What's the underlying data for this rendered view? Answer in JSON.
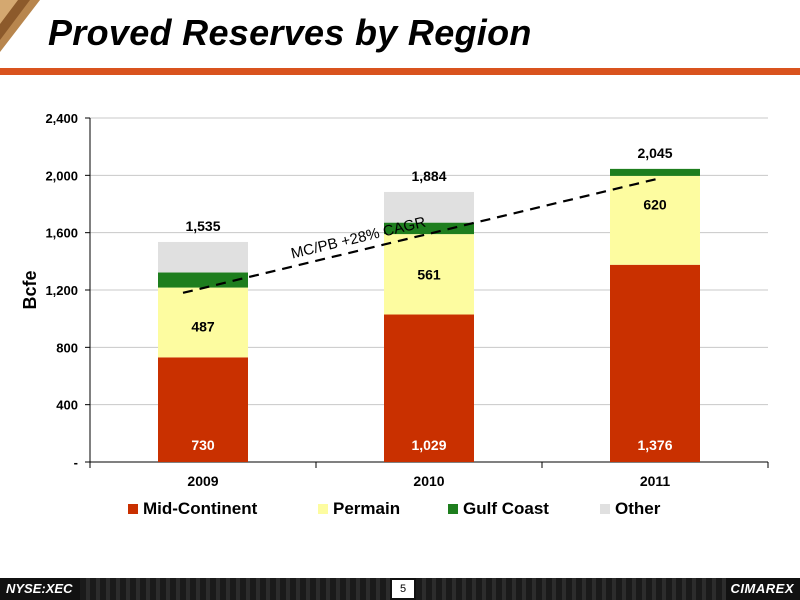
{
  "title": "Proved Reserves by Region",
  "footer": {
    "ticker": "NYSE:XEC",
    "page": "5",
    "brand": "CIMAREX"
  },
  "colors": {
    "Mid-Continent": "#c93000",
    "Permain": "#fdfca0",
    "Gulf Coast": "#1e7e1e",
    "Other": "#e0e0e0",
    "accent": "#d9531e"
  },
  "chart_data": {
    "type": "bar",
    "stacked": true,
    "categories": [
      "2009",
      "2010",
      "2011"
    ],
    "series": [
      {
        "name": "Mid-Continent",
        "values": [
          730,
          1029,
          1376
        ]
      },
      {
        "name": "Permain",
        "values": [
          487,
          561,
          620
        ]
      },
      {
        "name": "Gulf Coast",
        "values": [
          105,
          80,
          49
        ]
      },
      {
        "name": "Other",
        "values": [
          213,
          214,
          0
        ]
      }
    ],
    "segment_labels": {
      "Mid-Continent": [
        "730",
        "1,029",
        "1,376"
      ],
      "Permain": [
        "487",
        "561",
        "620"
      ]
    },
    "totals": [
      1535,
      1884,
      2045
    ],
    "total_labels": [
      "1,535",
      "1,884",
      "2,045"
    ],
    "ylabel": "Bcfe",
    "xlabel": "",
    "ylim": [
      0,
      2400
    ],
    "yticks": [
      0,
      400,
      800,
      1200,
      1600,
      2000,
      2400
    ],
    "ytick_labels": [
      "-",
      "400",
      "800",
      "1,200",
      "1,600",
      "2,000",
      "2,400"
    ],
    "grid": true,
    "legend_position": "bottom",
    "trend_line": {
      "from": [
        "2009",
        1180
      ],
      "to": [
        "2011",
        1980
      ],
      "label": "MC/PB +28% CAGR"
    }
  }
}
